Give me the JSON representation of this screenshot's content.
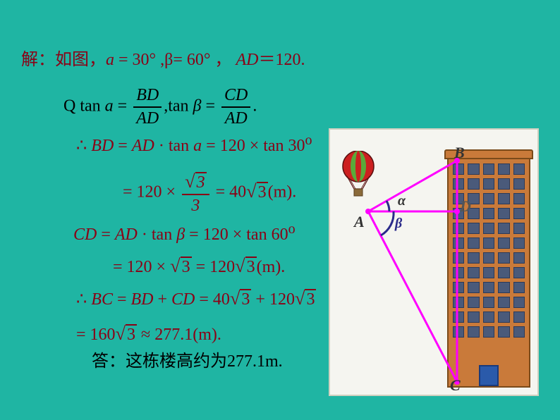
{
  "line1": {
    "prefix": "解：如图，",
    "eq1_var": "a",
    "eq1_rest": " = 30°  ,β= 60° ， ",
    "eq2_var": "AD",
    "eq2_rest": "＝120."
  },
  "line2": {
    "q": "Q ",
    "t1": "tan ",
    "a": "a",
    "eq": " = ",
    "num1": "BD",
    "den1": "AD",
    "comma": ",",
    "t2": "tan ",
    "b": "β",
    "eq2": " = ",
    "num2": "CD",
    "den2": "AD",
    "end": "."
  },
  "line3": {
    "therefore": "∴ ",
    "bd": "BD",
    "eq": " = ",
    "ad": "AD",
    "dot": " · ",
    "tan": "tan ",
    "a": "a",
    "eq2": " = 120 × tan 30",
    "deg": "o"
  },
  "line4": {
    "eq": "= 120 × ",
    "num": "√3",
    "den": "3",
    "eq2": " = 40",
    "sqrt": "3",
    "unit": "(m)."
  },
  "line5": {
    "cd": "CD",
    "eq": " = ",
    "ad": "AD",
    "dot": " · ",
    "tan": "tan ",
    "b": "β",
    "eq2": " = 120 × tan 60",
    "deg": "o"
  },
  "line6": {
    "eq": "= 120 × ",
    "sqrt1": "3",
    "eq2": " = 120",
    "sqrt2": "3",
    "unit": "(m)."
  },
  "line7": {
    "therefore": "∴ ",
    "bc": "BC",
    "eq": " = ",
    "bd": "BD",
    "plus": " + ",
    "cd": "CD",
    "eq2": " = 40",
    "sqrt1": "3",
    "plus2": " + 120",
    "sqrt2": "3"
  },
  "line8": {
    "eq": "= 160",
    "sqrt": "3",
    "approx": " ≈ 277.1(m)."
  },
  "answer": "答：这栋楼高约为277.1m.",
  "diagram": {
    "labels": {
      "A": "A",
      "B": "B",
      "C": "C",
      "D": "D",
      "alpha": "α",
      "beta": "β"
    },
    "colors": {
      "bg": "#f5f5f0",
      "building": "#c97a3a",
      "window": "#4a5a7a",
      "door": "#2a5aaa",
      "triangle": "#ff00ff",
      "angle_alpha": "#2a2a8a",
      "angle_beta": "#2a2a8a",
      "balloon_red": "#cc2020",
      "balloon_green": "#5aaa3a"
    }
  }
}
